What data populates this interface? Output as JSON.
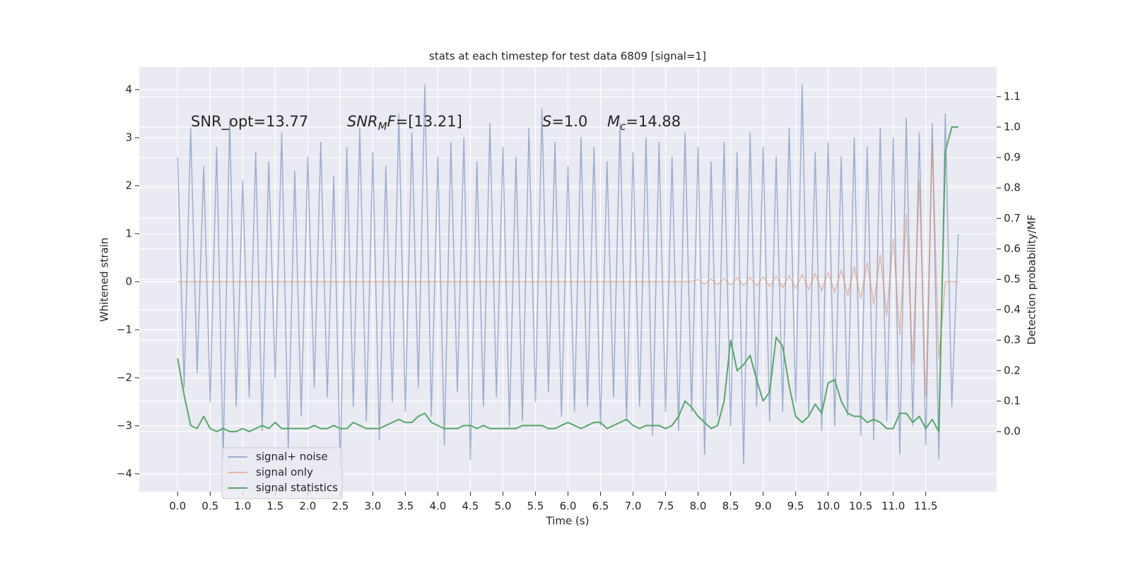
{
  "chart_data": {
    "type": "line",
    "title": "stats at each timestep for test data 6809 [signal=1]",
    "xlabel": "Time (s)",
    "ylabel": "Whitened strain",
    "y2label": "Detection probability/MF",
    "xlim": [
      -0.59,
      12.59
    ],
    "ylim": [
      -4.37,
      4.47
    ],
    "y2lim": [
      -0.197,
      1.197
    ],
    "grid": true,
    "legend": "lower left",
    "xticks": [
      {
        "value": 0,
        "label": "0.0"
      },
      0.5,
      {
        "value": 1,
        "label": "1.0"
      },
      1.5,
      {
        "value": 2,
        "label": "2.0"
      },
      2.5,
      {
        "value": 3,
        "label": "3.0"
      },
      3.5,
      {
        "value": 4,
        "label": "4.0"
      },
      4.5,
      {
        "value": 5,
        "label": "5.0"
      },
      5.5,
      {
        "value": 6,
        "label": "6.0"
      },
      6.5,
      {
        "value": 7,
        "label": "7.0"
      },
      7.5,
      {
        "value": 8,
        "label": "8.0"
      },
      8.5,
      {
        "value": 9,
        "label": "9.0"
      },
      9.5,
      {
        "value": 10,
        "label": "10.0"
      },
      10.5,
      {
        "value": 11,
        "label": "11.0"
      },
      11.5
    ],
    "yticks": [
      {
        "value": -4,
        "label": "−4"
      },
      {
        "value": -3,
        "label": "−3"
      },
      {
        "value": -2,
        "label": "−2"
      },
      {
        "value": -1,
        "label": "−1"
      },
      0,
      1,
      2,
      3,
      4
    ],
    "y2ticks": [
      {
        "value": 0,
        "label": "0.0"
      },
      0.1,
      0.2,
      0.3,
      0.4,
      0.5,
      0.6,
      0.7,
      0.8,
      0.9,
      {
        "value": 1,
        "label": "1.0"
      },
      1.1
    ],
    "annotations": [
      {
        "parts": [
          {
            "t": "SNR_opt=13.77"
          }
        ]
      },
      {
        "parts": [
          {
            "t": "SNR",
            "italic": true
          },
          {
            "t": "M",
            "italic": true,
            "sub": true
          },
          {
            "t": "F",
            "italic": true
          },
          {
            "t": "=[13.21]"
          }
        ]
      },
      {
        "parts": [
          {
            "t": "S",
            "italic": true
          },
          {
            "t": "=1.0"
          }
        ]
      },
      {
        "parts": [
          {
            "t": "M",
            "italic": true
          },
          {
            "t": "c",
            "italic": true,
            "sub": true
          },
          {
            "t": "=14.88"
          }
        ]
      }
    ],
    "x": [
      0.0,
      0.1,
      0.2,
      0.3,
      0.4,
      0.5,
      0.6,
      0.7,
      0.8,
      0.9,
      1.0,
      1.1,
      1.2,
      1.3,
      1.4,
      1.5,
      1.6,
      1.7,
      1.8,
      1.9,
      2.0,
      2.1,
      2.2,
      2.3,
      2.4,
      2.5,
      2.6,
      2.7,
      2.8,
      2.9,
      3.0,
      3.1,
      3.2,
      3.3,
      3.4,
      3.5,
      3.6,
      3.7,
      3.8,
      3.9,
      4.0,
      4.1,
      4.2,
      4.3,
      4.4,
      4.5,
      4.6,
      4.7,
      4.8,
      4.9,
      5.0,
      5.1,
      5.2,
      5.3,
      5.4,
      5.5,
      5.6,
      5.7,
      5.8,
      5.9,
      6.0,
      6.1,
      6.2,
      6.3,
      6.4,
      6.5,
      6.6,
      6.7,
      6.8,
      6.9,
      7.0,
      7.1,
      7.2,
      7.3,
      7.4,
      7.5,
      7.6,
      7.7,
      7.8,
      7.9,
      8.0,
      8.1,
      8.2,
      8.3,
      8.4,
      8.5,
      8.6,
      8.7,
      8.8,
      8.9,
      9.0,
      9.1,
      9.2,
      9.3,
      9.4,
      9.5,
      9.6,
      9.7,
      9.8,
      9.9,
      10.0,
      10.1,
      10.2,
      10.3,
      10.4,
      10.5,
      10.6,
      10.7,
      10.8,
      10.9,
      11.0,
      11.1,
      11.2,
      11.3,
      11.4,
      11.5,
      11.6,
      11.7,
      11.8,
      11.9,
      12.0
    ],
    "series": [
      {
        "name": "signal+ noise",
        "color": "#4c72b0",
        "values": [
          2.6,
          -2.2,
          3.2,
          -1.9,
          2.4,
          -2.5,
          2.8,
          -3.7,
          3.4,
          -2.6,
          2.1,
          -2.4,
          2.7,
          -3.1,
          2.5,
          -2.0,
          3.1,
          -3.5,
          2.3,
          -2.8,
          2.6,
          -2.2,
          2.9,
          -2.4,
          2.2,
          -3.9,
          2.8,
          -2.6,
          3.2,
          -2.9,
          2.7,
          -3.3,
          2.4,
          -2.5,
          3.5,
          -2.7,
          3.1,
          -2.2,
          4.1,
          -2.8,
          2.6,
          -3.4,
          2.9,
          -2.3,
          3.0,
          -3.7,
          2.5,
          -2.6,
          3.3,
          -2.4,
          2.8,
          -3.0,
          2.6,
          -2.9,
          3.2,
          -2.5,
          3.6,
          -2.3,
          2.9,
          -2.8,
          2.4,
          -2.7,
          3.0,
          -2.6,
          2.8,
          -3.0,
          2.5,
          -2.4,
          3.3,
          -2.9,
          2.7,
          -2.6,
          3.0,
          -3.2,
          2.9,
          -2.7,
          2.6,
          -3.1,
          3.1,
          -2.7,
          2.8,
          -3.6,
          2.5,
          -2.8,
          2.9,
          -3.0,
          2.7,
          -3.8,
          3.1,
          -2.6,
          2.8,
          -2.9,
          2.6,
          -2.7,
          3.2,
          -2.5,
          4.1,
          -2.8,
          2.7,
          -3.1,
          2.9,
          -3.0,
          2.6,
          -2.8,
          3.0,
          -3.2,
          2.8,
          -3.3,
          3.2,
          -2.9,
          3.0,
          -3.6,
          3.4,
          -3.0,
          3.1,
          -3.4,
          3.3,
          -3.7,
          3.5,
          -2.6,
          1.0
        ]
      },
      {
        "name": "signal only",
        "color": "#dd8452",
        "values": [
          0,
          0,
          0,
          0,
          0,
          0,
          0,
          0,
          0,
          0,
          0,
          0,
          0,
          0,
          0,
          0,
          0,
          0,
          0,
          0,
          0,
          0,
          0,
          0,
          0,
          0,
          0,
          0,
          0,
          0,
          0,
          0,
          0,
          0,
          0,
          0,
          0,
          0,
          0,
          0,
          0,
          0,
          0,
          0,
          0,
          0,
          0,
          0,
          0,
          0,
          0,
          0,
          0,
          0,
          0,
          0,
          0,
          0,
          0,
          0,
          0,
          0,
          0,
          0,
          0,
          0,
          0,
          0,
          0,
          0,
          0,
          0,
          0,
          0,
          0,
          0,
          0,
          0,
          0,
          0,
          0.05,
          -0.05,
          0.06,
          -0.06,
          0.07,
          -0.07,
          0.08,
          -0.08,
          0.09,
          -0.09,
          0.1,
          -0.1,
          0.11,
          -0.12,
          0.13,
          -0.14,
          0.15,
          -0.16,
          0.17,
          -0.19,
          0.2,
          -0.22,
          0.25,
          -0.28,
          0.31,
          -0.35,
          0.4,
          -0.47,
          0.56,
          -0.7,
          0.9,
          -1.1,
          1.4,
          -1.7,
          2.1,
          -2.4,
          2.9,
          -1.6,
          0,
          0,
          0
        ]
      },
      {
        "name": "signal statistics",
        "color": "#55a868",
        "axis": "y2",
        "values": [
          0.24,
          0.12,
          0.02,
          0.01,
          0.05,
          0.01,
          0.0,
          0.01,
          0.0,
          0.0,
          0.01,
          0.0,
          0.01,
          0.02,
          0.01,
          0.03,
          0.01,
          0.01,
          0.01,
          0.01,
          0.01,
          0.02,
          0.01,
          0.01,
          0.02,
          0.01,
          0.01,
          0.03,
          0.02,
          0.01,
          0.01,
          0.01,
          0.02,
          0.03,
          0.04,
          0.03,
          0.03,
          0.05,
          0.06,
          0.03,
          0.02,
          0.01,
          0.01,
          0.01,
          0.02,
          0.02,
          0.01,
          0.02,
          0.01,
          0.01,
          0.01,
          0.01,
          0.01,
          0.02,
          0.02,
          0.02,
          0.02,
          0.01,
          0.01,
          0.02,
          0.03,
          0.02,
          0.01,
          0.02,
          0.03,
          0.03,
          0.01,
          0.02,
          0.03,
          0.04,
          0.02,
          0.01,
          0.02,
          0.02,
          0.02,
          0.01,
          0.02,
          0.05,
          0.1,
          0.08,
          0.05,
          0.03,
          0.01,
          0.02,
          0.1,
          0.3,
          0.2,
          0.22,
          0.25,
          0.17,
          0.1,
          0.13,
          0.31,
          0.28,
          0.15,
          0.05,
          0.03,
          0.05,
          0.09,
          0.06,
          0.16,
          0.17,
          0.1,
          0.06,
          0.05,
          0.05,
          0.03,
          0.04,
          0.03,
          0.01,
          0.01,
          0.06,
          0.06,
          0.03,
          0.05,
          0.01,
          0.04,
          0.0,
          0.92,
          1.0,
          1.0
        ]
      }
    ]
  }
}
